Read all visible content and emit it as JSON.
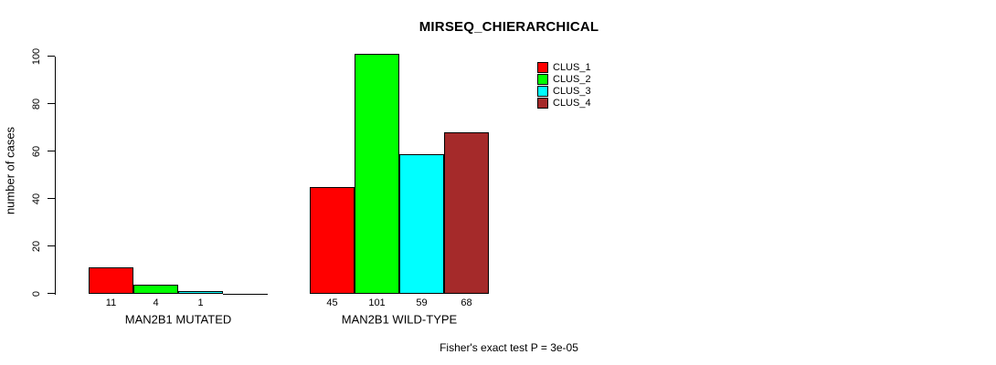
{
  "chart_data": {
    "type": "bar",
    "title": "MIRSEQ_CHIERARCHICAL",
    "ylabel": "number of cases",
    "xlabel": "",
    "ylim": [
      0,
      100
    ],
    "yticks": [
      0,
      20,
      40,
      60,
      80,
      100
    ],
    "grid": false,
    "legend_position": "top-right",
    "series": [
      {
        "name": "CLUS_1",
        "color": "#FF0000"
      },
      {
        "name": "CLUS_2",
        "color": "#00FF00"
      },
      {
        "name": "CLUS_3",
        "color": "#00FFFF"
      },
      {
        "name": "CLUS_4",
        "color": "#A52A2A"
      }
    ],
    "groups": [
      {
        "label": "MAN2B1 MUTATED",
        "values": [
          11,
          4,
          1,
          0
        ],
        "value_labels": [
          "11",
          "4",
          "1",
          ""
        ]
      },
      {
        "label": "MAN2B1 WILD-TYPE",
        "values": [
          45,
          101,
          59,
          68
        ],
        "value_labels": [
          "45",
          "101",
          "59",
          "68"
        ]
      }
    ],
    "footnote": "Fisher's exact test P = 3e-05"
  }
}
